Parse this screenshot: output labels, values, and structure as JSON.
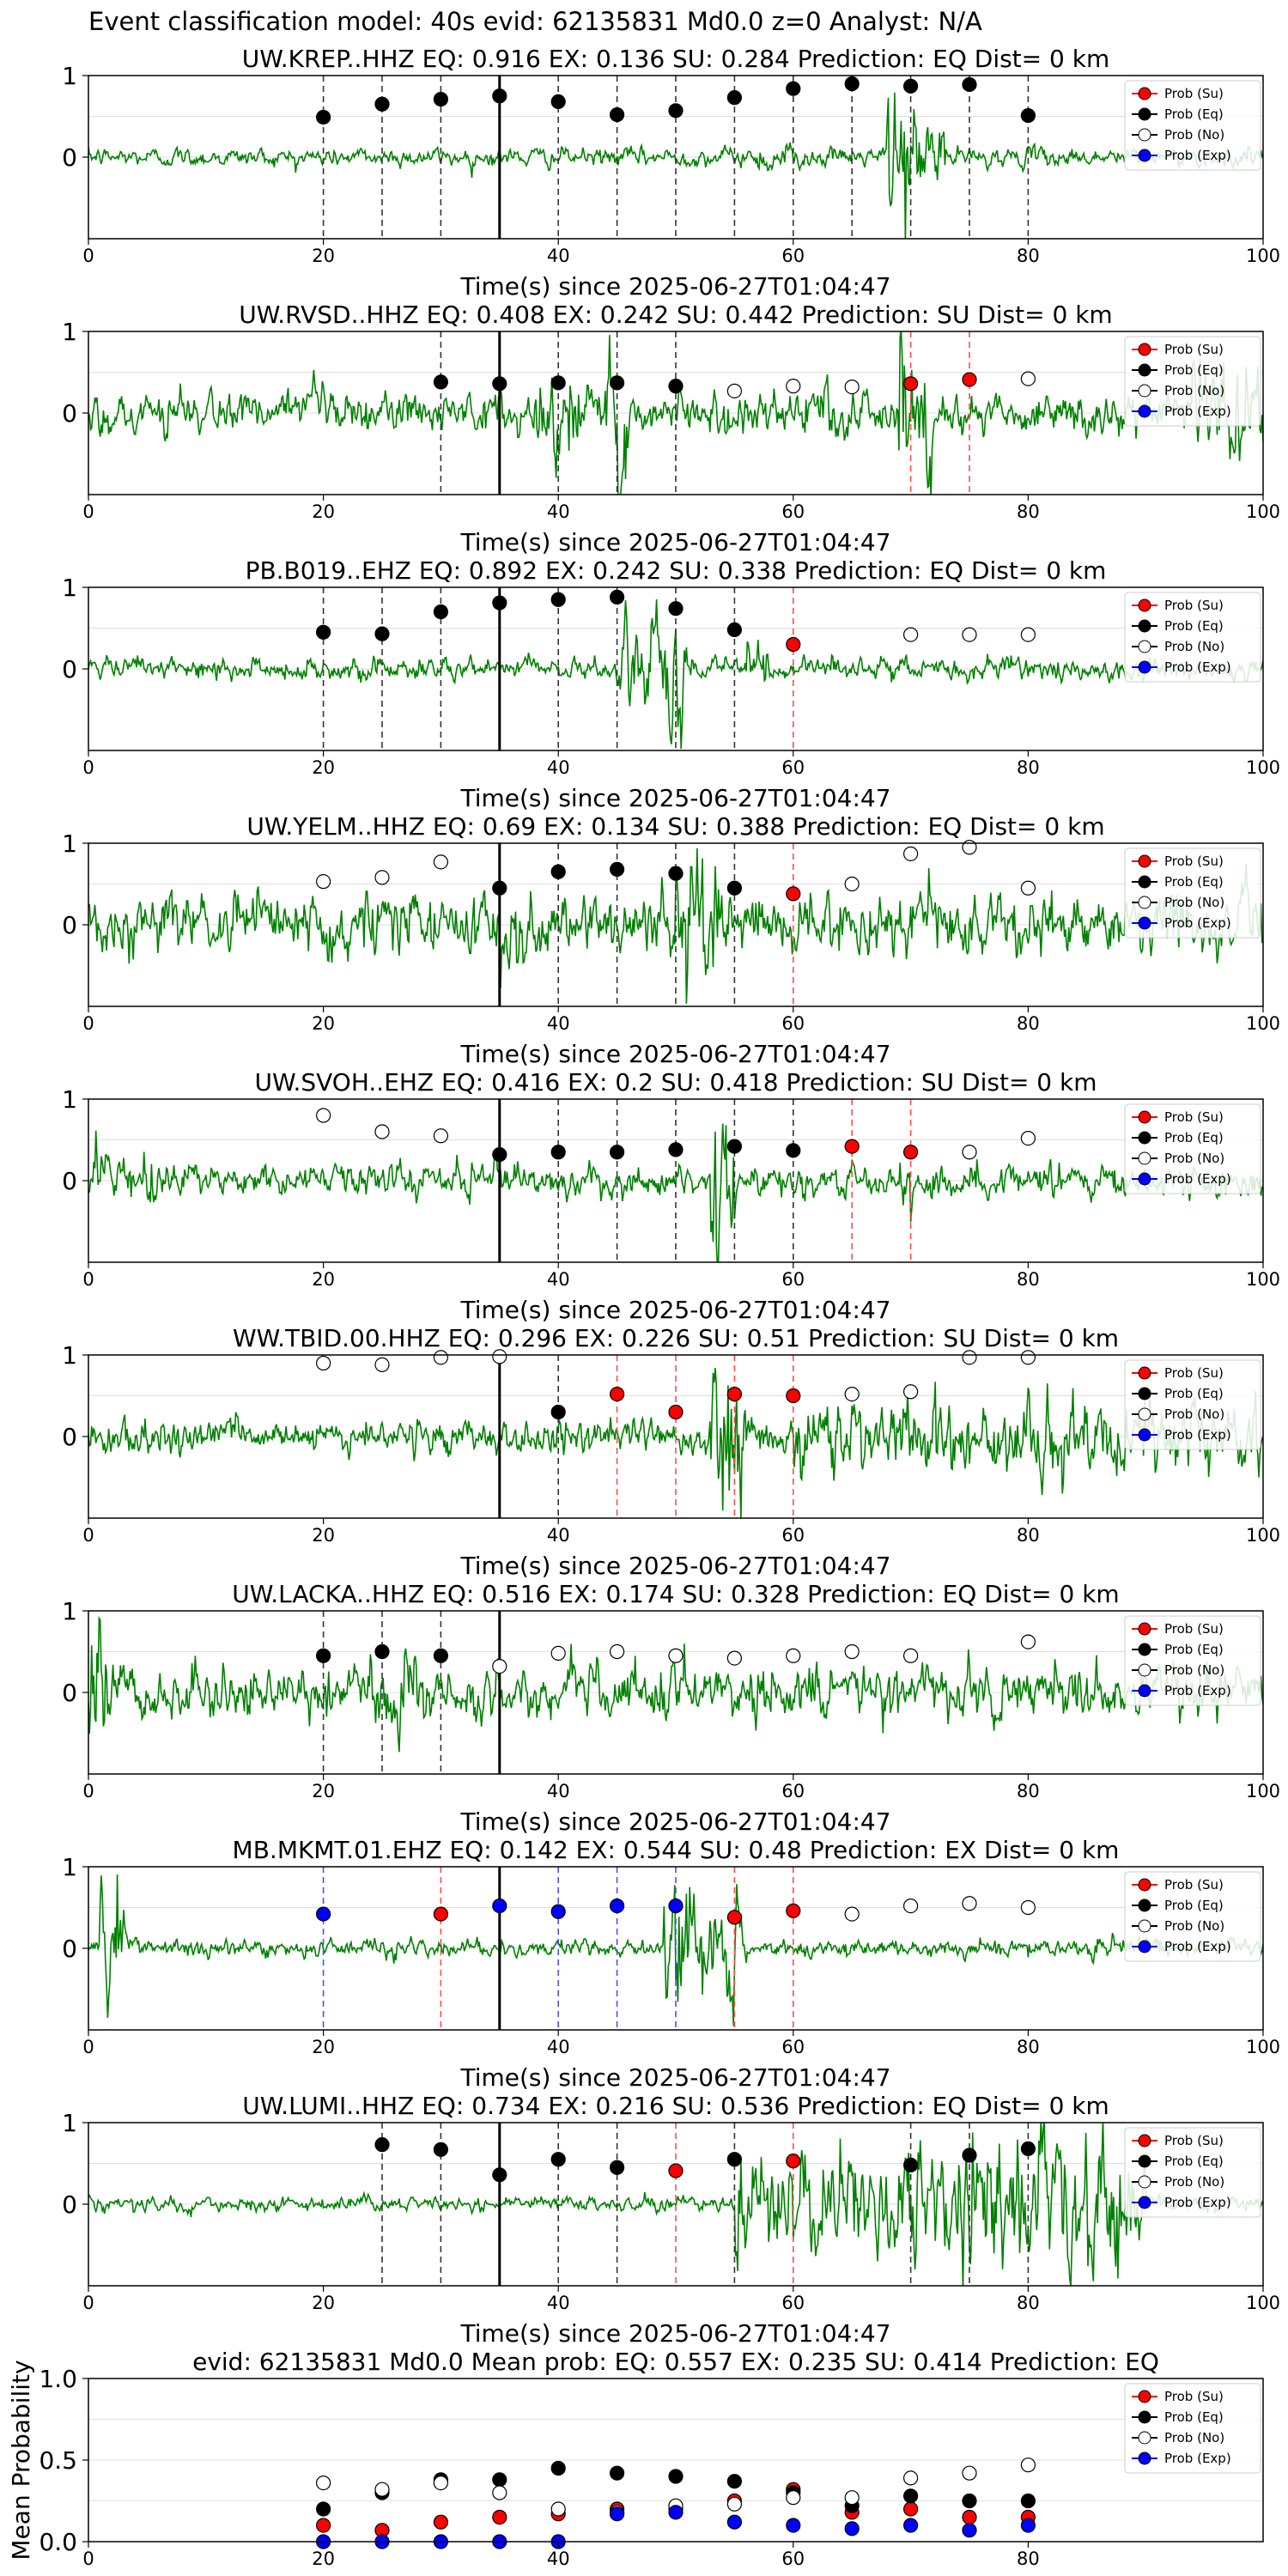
{
  "suptitle": "Event classification model: 40s evid: 62135831 Md0.0 z=0 Analyst: N/A",
  "legend_labels": [
    "Prob (Su)",
    "Prob (Eq)",
    "Prob (No)",
    "Prob (Exp)"
  ],
  "colors": {
    "waveform": "#008000",
    "su": "#ff0000",
    "eq": "#000000",
    "no": "#ffffff",
    "exp": "#0000ff",
    "vline_eq": "#333333",
    "vline_su": "#ff4d4d",
    "vline_exp": "#4d4dff"
  },
  "chart_data": [
    {
      "type": "line",
      "title": "UW.KREP..HHZ   EQ: 0.916  EX: 0.136  SU: 0.284   Prediction: EQ    Dist= 0 km",
      "xlabel": "Time(s) since 2025-06-27T01:04:47",
      "xlim": [
        0,
        100
      ],
      "ylim": [
        -1,
        1
      ],
      "xticks": [
        "0",
        "20",
        "40",
        "60",
        "80",
        "100"
      ],
      "yticks": [
        "1",
        "0"
      ],
      "origin_line": 35,
      "amplitude": 0.1,
      "bursts": [
        [
          68,
          70,
          1.0
        ],
        [
          70,
          73,
          0.5
        ],
        [
          57,
          60,
          0.2
        ]
      ],
      "points": [
        [
          20,
          0.49,
          "eq"
        ],
        [
          25,
          0.65,
          "eq"
        ],
        [
          30,
          0.71,
          "eq"
        ],
        [
          35,
          0.75,
          "eq"
        ],
        [
          40,
          0.68,
          "eq"
        ],
        [
          45,
          0.52,
          "eq"
        ],
        [
          50,
          0.57,
          "eq"
        ],
        [
          55,
          0.73,
          "eq"
        ],
        [
          60,
          0.84,
          "eq"
        ],
        [
          65,
          0.9,
          "eq"
        ],
        [
          70,
          0.87,
          "eq"
        ],
        [
          75,
          0.89,
          "eq"
        ],
        [
          80,
          0.51,
          "eq"
        ]
      ]
    },
    {
      "type": "line",
      "title": "UW.RVSD..HHZ   EQ: 0.408  EX: 0.242  SU: 0.442   Prediction: SU    Dist= 0 km",
      "xlabel": "Time(s) since 2025-06-27T01:04:47",
      "xlim": [
        0,
        100
      ],
      "ylim": [
        -1,
        1
      ],
      "xticks": [
        "0",
        "20",
        "40",
        "60",
        "80",
        "100"
      ],
      "yticks": [
        "1",
        "0"
      ],
      "origin_line": 35,
      "amplitude": 0.25,
      "bursts": [
        [
          44,
          46,
          1.0
        ],
        [
          38,
          42,
          0.5
        ],
        [
          69,
          72,
          0.8
        ],
        [
          94,
          100,
          0.6
        ]
      ],
      "points": [
        [
          30,
          0.38,
          "eq"
        ],
        [
          35,
          0.36,
          "eq"
        ],
        [
          40,
          0.37,
          "eq"
        ],
        [
          45,
          0.37,
          "eq"
        ],
        [
          50,
          0.33,
          "eq"
        ],
        [
          55,
          0.27,
          "no"
        ],
        [
          60,
          0.33,
          "no"
        ],
        [
          65,
          0.32,
          "no"
        ],
        [
          70,
          0.36,
          "su"
        ],
        [
          75,
          0.41,
          "su"
        ],
        [
          80,
          0.42,
          "no"
        ]
      ]
    },
    {
      "type": "line",
      "title": "PB.B019..EHZ   EQ: 0.892  EX: 0.242  SU: 0.338   Prediction: EQ    Dist= 0 km",
      "xlabel": "Time(s) since 2025-06-27T01:04:47",
      "xlim": [
        0,
        100
      ],
      "ylim": [
        -1,
        1
      ],
      "xticks": [
        "0",
        "20",
        "40",
        "60",
        "80",
        "100"
      ],
      "yticks": [
        "1",
        "0"
      ],
      "origin_line": 35,
      "amplitude": 0.12,
      "bursts": [
        [
          45,
          51,
          0.9
        ],
        [
          56,
          58,
          0.4
        ]
      ],
      "points": [
        [
          20,
          0.45,
          "eq"
        ],
        [
          25,
          0.43,
          "eq"
        ],
        [
          30,
          0.7,
          "eq"
        ],
        [
          35,
          0.81,
          "eq"
        ],
        [
          40,
          0.85,
          "eq"
        ],
        [
          45,
          0.88,
          "eq"
        ],
        [
          50,
          0.74,
          "eq"
        ],
        [
          55,
          0.48,
          "eq"
        ],
        [
          60,
          0.3,
          "su"
        ],
        [
          70,
          0.42,
          "no"
        ],
        [
          75,
          0.42,
          "no"
        ],
        [
          80,
          0.42,
          "no"
        ]
      ]
    },
    {
      "type": "line",
      "title": "UW.YELM..HHZ   EQ: 0.69  EX: 0.134  SU: 0.388   Prediction: EQ    Dist= 0 km",
      "xlabel": "Time(s) since 2025-06-27T01:04:47",
      "xlim": [
        0,
        100
      ],
      "ylim": [
        -1,
        1
      ],
      "xticks": [
        "0",
        "20",
        "40",
        "60",
        "80",
        "100"
      ],
      "yticks": [
        "1",
        "0"
      ],
      "origin_line": 35,
      "amplitude": 0.35,
      "bursts": [
        [
          50,
          54,
          0.9
        ],
        [
          35,
          38,
          0.6
        ]
      ],
      "points": [
        [
          20,
          0.53,
          "no"
        ],
        [
          25,
          0.58,
          "no"
        ],
        [
          30,
          0.77,
          "no"
        ],
        [
          35,
          0.45,
          "eq"
        ],
        [
          40,
          0.65,
          "eq"
        ],
        [
          45,
          0.68,
          "eq"
        ],
        [
          50,
          0.63,
          "eq"
        ],
        [
          55,
          0.45,
          "eq"
        ],
        [
          60,
          0.38,
          "su"
        ],
        [
          65,
          0.5,
          "no"
        ],
        [
          70,
          0.87,
          "no"
        ],
        [
          75,
          0.95,
          "no"
        ],
        [
          80,
          0.45,
          "no"
        ]
      ]
    },
    {
      "type": "line",
      "title": "UW.SVOH..EHZ   EQ: 0.416  EX: 0.2  SU: 0.418   Prediction: SU    Dist= 0 km",
      "xlabel": "Time(s) since 2025-06-27T01:04:47",
      "xlim": [
        0,
        100
      ],
      "ylim": [
        -1,
        1
      ],
      "xticks": [
        "0",
        "20",
        "40",
        "60",
        "80",
        "100"
      ],
      "yticks": [
        "1",
        "0"
      ],
      "origin_line": 35,
      "amplitude": 0.18,
      "bursts": [
        [
          53,
          55,
          1.0
        ],
        [
          0,
          8,
          0.3
        ],
        [
          69,
          70,
          0.4
        ]
      ],
      "points": [
        [
          20,
          0.8,
          "no"
        ],
        [
          25,
          0.6,
          "no"
        ],
        [
          30,
          0.55,
          "no"
        ],
        [
          35,
          0.32,
          "eq"
        ],
        [
          40,
          0.35,
          "eq"
        ],
        [
          45,
          0.35,
          "eq"
        ],
        [
          50,
          0.38,
          "eq"
        ],
        [
          55,
          0.42,
          "eq"
        ],
        [
          60,
          0.37,
          "eq"
        ],
        [
          65,
          0.42,
          "su"
        ],
        [
          70,
          0.35,
          "su"
        ],
        [
          75,
          0.35,
          "no"
        ],
        [
          80,
          0.52,
          "no"
        ]
      ]
    },
    {
      "type": "line",
      "title": "WW.TBID.00.HHZ   EQ: 0.296  EX: 0.226  SU: 0.51   Prediction: SU    Dist= 0 km",
      "xlabel": "Time(s) since 2025-06-27T01:04:47",
      "xlim": [
        0,
        100
      ],
      "ylim": [
        -1,
        1
      ],
      "xticks": [
        "0",
        "20",
        "40",
        "60",
        "80",
        "100"
      ],
      "yticks": [
        "1",
        "0"
      ],
      "origin_line": 35,
      "amplitude": 0.2,
      "bursts": [
        [
          53,
          56,
          0.9
        ],
        [
          60,
          100,
          0.45
        ]
      ],
      "points": [
        [
          20,
          0.9,
          "no"
        ],
        [
          25,
          0.88,
          "no"
        ],
        [
          30,
          0.97,
          "no"
        ],
        [
          35,
          0.98,
          "no"
        ],
        [
          40,
          0.3,
          "eq"
        ],
        [
          45,
          0.52,
          "su"
        ],
        [
          50,
          0.3,
          "su"
        ],
        [
          55,
          0.52,
          "su"
        ],
        [
          60,
          0.5,
          "su"
        ],
        [
          65,
          0.52,
          "no"
        ],
        [
          70,
          0.55,
          "no"
        ],
        [
          75,
          0.97,
          "no"
        ],
        [
          80,
          0.97,
          "no"
        ]
      ]
    },
    {
      "type": "line",
      "title": "UW.LACKA..HHZ   EQ: 0.516  EX: 0.174  SU: 0.328   Prediction: EQ    Dist= 0 km",
      "xlabel": "Time(s) since 2025-06-27T01:04:47",
      "xlim": [
        0,
        100
      ],
      "ylim": [
        -1,
        1
      ],
      "xticks": [
        "0",
        "20",
        "40",
        "60",
        "80",
        "100"
      ],
      "yticks": [
        "1",
        "0"
      ],
      "origin_line": 35,
      "amplitude": 0.3,
      "bursts": [
        [
          0,
          2,
          0.9
        ],
        [
          24,
          28,
          0.5
        ]
      ],
      "points": [
        [
          20,
          0.45,
          "eq"
        ],
        [
          25,
          0.5,
          "eq"
        ],
        [
          30,
          0.45,
          "eq"
        ],
        [
          35,
          0.32,
          "no"
        ],
        [
          40,
          0.48,
          "no"
        ],
        [
          45,
          0.5,
          "no"
        ],
        [
          50,
          0.45,
          "no"
        ],
        [
          55,
          0.42,
          "no"
        ],
        [
          60,
          0.45,
          "no"
        ],
        [
          65,
          0.5,
          "no"
        ],
        [
          70,
          0.45,
          "no"
        ],
        [
          80,
          0.62,
          "no"
        ]
      ]
    },
    {
      "type": "line",
      "title": "MB.MKMT.01.EHZ   EQ: 0.142  EX: 0.544  SU: 0.48   Prediction: EX    Dist= 0 km",
      "xlabel": "Time(s) since 2025-06-27T01:04:47",
      "xlim": [
        0,
        100
      ],
      "ylim": [
        -1,
        1
      ],
      "xticks": [
        "0",
        "20",
        "40",
        "60",
        "80",
        "100"
      ],
      "yticks": [
        "1",
        "0"
      ],
      "origin_line": 35,
      "amplitude": 0.1,
      "bursts": [
        [
          1,
          3,
          0.7
        ],
        [
          49,
          52,
          0.9
        ],
        [
          52,
          56,
          0.6
        ]
      ],
      "points": [
        [
          20,
          0.42,
          "exp"
        ],
        [
          30,
          0.42,
          "su"
        ],
        [
          35,
          0.52,
          "exp"
        ],
        [
          40,
          0.45,
          "exp"
        ],
        [
          45,
          0.52,
          "exp"
        ],
        [
          50,
          0.52,
          "exp"
        ],
        [
          55,
          0.38,
          "su"
        ],
        [
          60,
          0.46,
          "su"
        ],
        [
          65,
          0.42,
          "no"
        ],
        [
          70,
          0.52,
          "no"
        ],
        [
          75,
          0.55,
          "no"
        ],
        [
          80,
          0.5,
          "no"
        ]
      ]
    },
    {
      "type": "line",
      "title": "UW.LUMI..HHZ   EQ: 0.734  EX: 0.216  SU: 0.536   Prediction: EQ    Dist= 0 km",
      "xlabel": "Time(s) since 2025-06-27T01:04:47",
      "xlim": [
        0,
        100
      ],
      "ylim": [
        -1,
        1
      ],
      "xticks": [
        "0",
        "20",
        "40",
        "60",
        "80",
        "100"
      ],
      "yticks": [
        "1",
        "0"
      ],
      "origin_line": 35,
      "amplitude": 0.08,
      "bursts": [
        [
          55,
          90,
          0.6
        ],
        [
          74,
          88,
          0.9
        ]
      ],
      "points": [
        [
          25,
          0.73,
          "eq"
        ],
        [
          30,
          0.67,
          "eq"
        ],
        [
          35,
          0.36,
          "eq"
        ],
        [
          40,
          0.55,
          "eq"
        ],
        [
          45,
          0.45,
          "eq"
        ],
        [
          50,
          0.41,
          "su"
        ],
        [
          55,
          0.55,
          "eq"
        ],
        [
          60,
          0.53,
          "su"
        ],
        [
          70,
          0.48,
          "eq"
        ],
        [
          75,
          0.6,
          "eq"
        ],
        [
          80,
          0.68,
          "eq"
        ]
      ]
    },
    {
      "type": "scatter",
      "title": "evid: 62135831  Md0.0   Mean prob:    EQ: 0.557  EX: 0.235  SU: 0.414   Prediction: EQ",
      "ylabel": "Mean Probability",
      "xlim": [
        0,
        100
      ],
      "ylim": [
        0,
        1
      ],
      "xticks": [
        "0",
        "20",
        "40",
        "60",
        "80"
      ],
      "yticks": [
        "0.0",
        "0.5",
        "1.0"
      ],
      "series": [
        {
          "name": "Prob (Su)",
          "key": "su",
          "x": [
            20,
            25,
            30,
            35,
            40,
            45,
            50,
            55,
            60,
            65,
            70,
            75,
            80
          ],
          "y": [
            0.1,
            0.07,
            0.12,
            0.15,
            0.17,
            0.2,
            0.2,
            0.25,
            0.32,
            0.18,
            0.2,
            0.15,
            0.15
          ]
        },
        {
          "name": "Prob (Eq)",
          "key": "eq",
          "x": [
            20,
            25,
            30,
            35,
            40,
            45,
            50,
            55,
            60,
            65,
            70,
            75,
            80
          ],
          "y": [
            0.2,
            0.3,
            0.38,
            0.38,
            0.45,
            0.42,
            0.4,
            0.37,
            0.3,
            0.22,
            0.28,
            0.25,
            0.25
          ]
        },
        {
          "name": "Prob (No)",
          "key": "no",
          "x": [
            20,
            25,
            30,
            35,
            40,
            45,
            50,
            55,
            60,
            65,
            70,
            75,
            80
          ],
          "y": [
            0.36,
            0.32,
            0.36,
            0.3,
            0.2,
            0.18,
            0.22,
            0.23,
            0.27,
            0.27,
            0.39,
            0.42,
            0.47
          ]
        },
        {
          "name": "Prob (Exp)",
          "key": "exp",
          "x": [
            20,
            25,
            30,
            35,
            40,
            45,
            50,
            55,
            60,
            65,
            70,
            75,
            80
          ],
          "y": [
            0.0,
            0.0,
            0.0,
            0.0,
            0.0,
            0.17,
            0.18,
            0.12,
            0.1,
            0.08,
            0.1,
            0.07,
            0.1
          ]
        }
      ]
    }
  ]
}
